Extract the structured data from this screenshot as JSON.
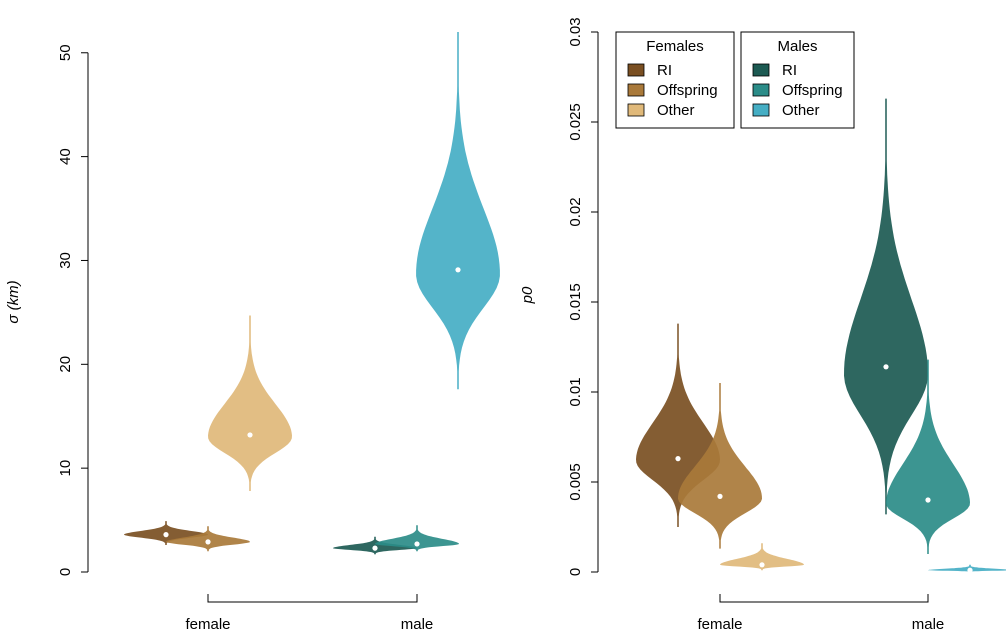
{
  "chart_data": [
    {
      "type": "violin",
      "ylabel": "σ (km)",
      "ylim": [
        0,
        52
      ],
      "yticks": [
        "0",
        "10",
        "20",
        "30",
        "40",
        "50"
      ],
      "ytick_values": [
        0,
        10,
        20,
        30,
        40,
        50
      ],
      "groups": [
        "female",
        "male"
      ],
      "series": [
        {
          "group": "female",
          "name": "RI",
          "color": "#7a4f22",
          "median": 3.6,
          "min": 2.6,
          "max": 4.9,
          "mode": 3.6
        },
        {
          "group": "female",
          "name": "Offspring",
          "color": "#a9793a",
          "median": 2.9,
          "min": 2.0,
          "max": 4.4,
          "mode": 2.9
        },
        {
          "group": "female",
          "name": "Other",
          "color": "#e0b97a",
          "median": 13.2,
          "min": 7.8,
          "max": 24.7,
          "mode": 13.0
        },
        {
          "group": "male",
          "name": "RI",
          "color": "#1c5a52",
          "median": 2.3,
          "min": 1.7,
          "max": 3.4,
          "mode": 2.3
        },
        {
          "group": "male",
          "name": "Offspring",
          "color": "#2b8c88",
          "median": 2.7,
          "min": 2.0,
          "max": 4.5,
          "mode": 2.7
        },
        {
          "group": "male",
          "name": "Other",
          "color": "#45aec4",
          "median": 29.1,
          "min": 17.6,
          "max": 52.0,
          "mode": 28.7
        }
      ]
    },
    {
      "type": "violin",
      "ylabel": "p0",
      "ylim": [
        0,
        0.03
      ],
      "yticks": [
        "0",
        "0.005",
        "0.01",
        "0.015",
        "0.02",
        "0.025",
        "0.03"
      ],
      "ytick_values": [
        0,
        0.005,
        0.01,
        0.015,
        0.02,
        0.025,
        0.03
      ],
      "groups": [
        "female",
        "male"
      ],
      "legend": {
        "placement": "top-left",
        "titles": [
          "Females",
          "Males"
        ],
        "entries": [
          "RI",
          "Offspring",
          "Other"
        ]
      },
      "series": [
        {
          "group": "female",
          "name": "RI",
          "color": "#7a4f22",
          "median": 0.0063,
          "min": 0.0025,
          "max": 0.0138,
          "mode": 0.0062
        },
        {
          "group": "female",
          "name": "Offspring",
          "color": "#a9793a",
          "median": 0.0042,
          "min": 0.0013,
          "max": 0.0105,
          "mode": 0.0041
        },
        {
          "group": "female",
          "name": "Other",
          "color": "#e0b97a",
          "median": 0.0004,
          "min": 0.0001,
          "max": 0.0016,
          "mode": 0.0004
        },
        {
          "group": "male",
          "name": "RI",
          "color": "#1c5a52",
          "median": 0.0114,
          "min": 0.0032,
          "max": 0.0263,
          "mode": 0.011
        },
        {
          "group": "male",
          "name": "Offspring",
          "color": "#2b8c88",
          "median": 0.004,
          "min": 0.001,
          "max": 0.0118,
          "mode": 0.0038
        },
        {
          "group": "male",
          "name": "Other",
          "color": "#45aec4",
          "median": 0.0001,
          "min": 0.0,
          "max": 0.0004,
          "mode": 0.0001
        }
      ]
    }
  ]
}
